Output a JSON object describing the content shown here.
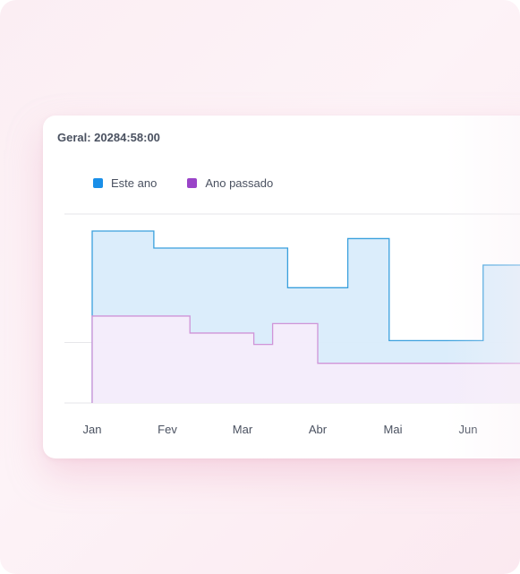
{
  "colors": {
    "este_ano": "#1a8fe8",
    "ano_passado": "#9a44c8",
    "este_ano_line": "#3aa0dd",
    "este_ano_fill": "#d9ecfb",
    "ano_passado_line": "#cf94d8",
    "ano_passado_fill": "#f6ecfb",
    "grid": "#e6e6ea",
    "tick_text": "#4a5160"
  },
  "chart_data": {
    "type": "area",
    "step": true,
    "title": "Geral: 20284:58:00",
    "xlabel": "",
    "ylabel": "",
    "grid": true,
    "legend_position": "top-left",
    "x_ticks": [
      "Jan",
      "Fev",
      "Mar",
      "Abr",
      "Mai",
      "Jun"
    ],
    "x_domain": [
      0,
      5.9
    ],
    "ylim": [
      0,
      100
    ],
    "series": [
      {
        "name": "Este ano",
        "points": [
          [
            0,
            91
          ],
          [
            0.82,
            91
          ],
          [
            0.82,
            82
          ],
          [
            2.6,
            82
          ],
          [
            2.6,
            61
          ],
          [
            3.4,
            61
          ],
          [
            3.4,
            87
          ],
          [
            3.95,
            87
          ],
          [
            3.95,
            33
          ],
          [
            5.2,
            33
          ],
          [
            5.2,
            73
          ],
          [
            5.9,
            73
          ]
        ]
      },
      {
        "name": "Ano passado",
        "points": [
          [
            0,
            46
          ],
          [
            1.3,
            46
          ],
          [
            1.3,
            37
          ],
          [
            2.15,
            37
          ],
          [
            2.15,
            31
          ],
          [
            2.4,
            31
          ],
          [
            2.4,
            42
          ],
          [
            3.0,
            42
          ],
          [
            3.0,
            21
          ],
          [
            5.9,
            21
          ]
        ]
      }
    ]
  }
}
